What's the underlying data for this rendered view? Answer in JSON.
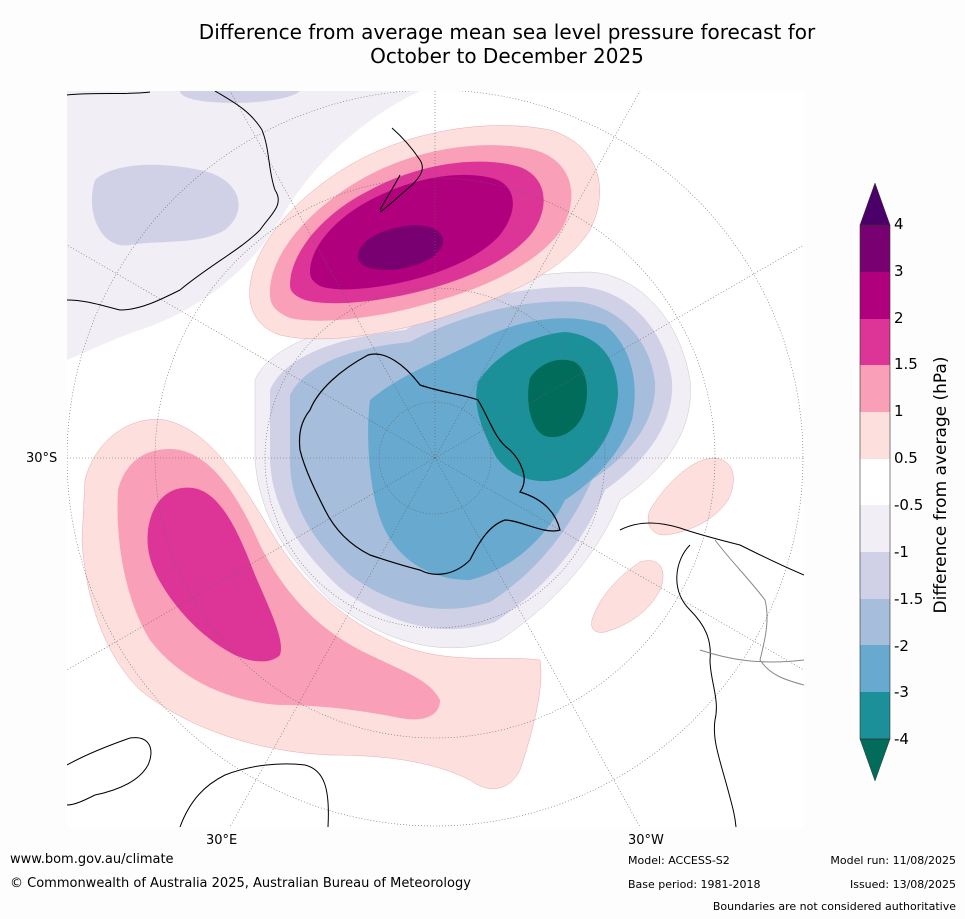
{
  "title": {
    "line1": "Difference from average mean sea level pressure forecast for",
    "line2": "October to December 2025"
  },
  "colorbar": {
    "title": "Difference from average (hPa)",
    "ticks": [
      "4",
      "3",
      "2",
      "1.5",
      "1",
      "0.5",
      "-0.5",
      "-1",
      "-1.5",
      "-2",
      "-3",
      "-4"
    ],
    "colors": {
      "above_4": "#4b0069",
      "3_to_4": "#780070",
      "2_to_3": "#b1007e",
      "1.5_to_2": "#dd3497",
      "1_to_1.5": "#f99fb8",
      "0.5_to_1": "#fde0dd",
      "neutral": "#ffffff",
      "-1_to_-0.5": "#f2eef5",
      "-1.5_to_-1": "#d0d1e6",
      "-2_to_-1.5": "#a6bddb",
      "-3_to_-2": "#67a9cf",
      "-4_to_-3": "#1c9099",
      "below_-4": "#016c59"
    }
  },
  "map_labels": {
    "lat_30s": "30°S",
    "lon_30e": "30°E",
    "lon_30w": "30°W"
  },
  "footer": {
    "website": "www.bom.gov.au/climate",
    "copyright": "© Commonwealth of Australia 2025, Australian Bureau of Meteorology",
    "model": "Model: ACCESS-S2",
    "base_period": "Base period: 1981-2018",
    "model_run": "Model run: 11/08/2025",
    "issued": "Issued: 13/08/2025",
    "disclaimer": "Boundaries are not considered authoritative"
  }
}
